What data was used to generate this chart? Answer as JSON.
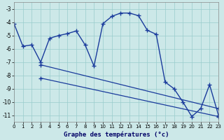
{
  "xlabel": "Graphe des températures (°c)",
  "background_color": "#cce8e8",
  "line_color": "#1a3b9c",
  "grid_color": "#99cccc",
  "xlim": [
    0,
    23
  ],
  "ylim": [
    -11.5,
    -2.5
  ],
  "xticks": [
    0,
    1,
    2,
    3,
    4,
    5,
    6,
    7,
    8,
    9,
    10,
    11,
    12,
    13,
    14,
    15,
    16,
    17,
    18,
    19,
    20,
    21,
    22,
    23
  ],
  "yticks": [
    -11,
    -10,
    -9,
    -8,
    -7,
    -6,
    -5,
    -4,
    -3
  ],
  "series1_x": [
    0,
    1,
    2,
    3,
    4,
    5,
    6,
    7,
    8,
    9,
    10,
    11,
    12,
    13,
    14,
    15,
    16,
    17,
    18,
    19,
    20,
    21,
    22,
    23
  ],
  "series1_y": [
    -4.1,
    -5.8,
    -5.7,
    -7.0,
    -5.2,
    -5.0,
    -4.85,
    -4.65,
    -5.7,
    -7.3,
    -4.1,
    -3.55,
    -3.3,
    -3.3,
    -3.5,
    -4.6,
    -4.9,
    -8.5,
    -9.0,
    -10.0,
    -11.1,
    -10.5,
    -8.7,
    -11.0
  ],
  "series2_x": [
    3,
    23
  ],
  "series2_y": [
    -7.2,
    -10.5
  ],
  "series3_x": [
    3,
    23
  ],
  "series3_y": [
    -8.2,
    -11.1
  ]
}
